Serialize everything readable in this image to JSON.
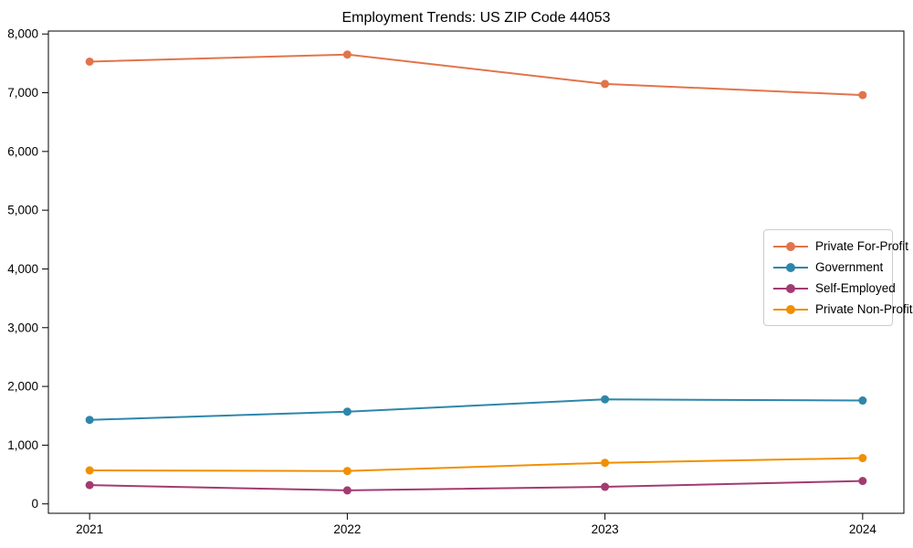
{
  "chart_data": {
    "type": "line",
    "title": "Employment Trends: US ZIP Code 44053",
    "xlabel": "",
    "ylabel": "",
    "x": [
      2021,
      2022,
      2023,
      2024
    ],
    "x_labels": [
      "2021",
      "2022",
      "2023",
      "2024"
    ],
    "series": [
      {
        "name": "Private For-Profit",
        "color": "#E2744B",
        "values": [
          7530,
          7650,
          7150,
          6960
        ]
      },
      {
        "name": "Government",
        "color": "#2E86AB",
        "values": [
          1430,
          1570,
          1780,
          1760
        ]
      },
      {
        "name": "Self-Employed",
        "color": "#A23B72",
        "values": [
          320,
          230,
          290,
          390
        ]
      },
      {
        "name": "Private Non-Profit",
        "color": "#F18F01",
        "values": [
          570,
          560,
          700,
          780
        ]
      }
    ],
    "ytick_values": [
      0,
      1000,
      2000,
      3000,
      4000,
      5000,
      6000,
      7000,
      8000
    ],
    "ytick_labels": [
      "0",
      "1,000",
      "2,000",
      "3,000",
      "4,000",
      "5,000",
      "6,000",
      "7,000",
      "8,000"
    ],
    "xlim": [
      2020.84,
      2024.16
    ],
    "ylim": [
      -160,
      8050
    ],
    "grid": false,
    "legend_position": "center right",
    "axis_color": "#000000",
    "background_color": "#ffffff"
  }
}
